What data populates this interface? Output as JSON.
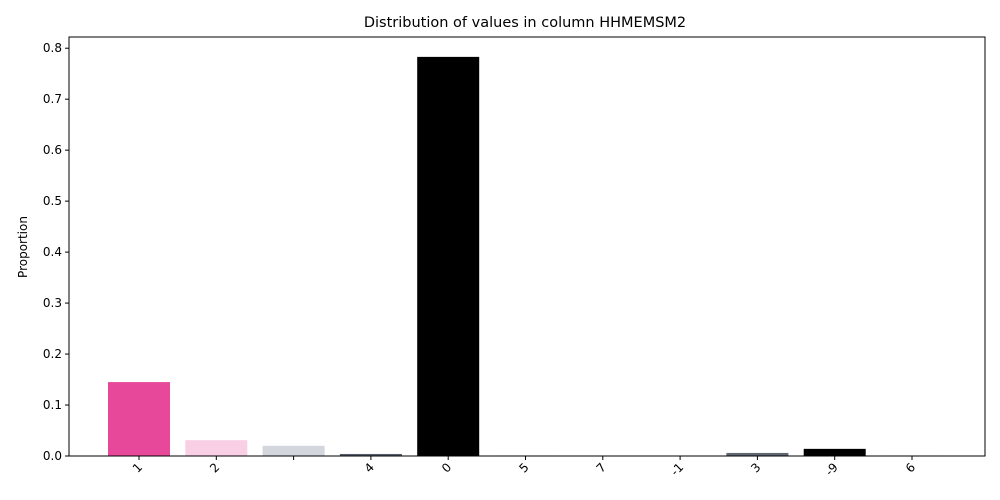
{
  "chart_data": {
    "type": "bar",
    "title": "Distribution of values in column HHMEMSM2",
    "xlabel": "",
    "ylabel": "Proportion",
    "categories": [
      "1",
      "2",
      "",
      "4",
      "0",
      "5",
      "7",
      "-1",
      "3",
      "-9",
      "6"
    ],
    "values": [
      0.145,
      0.031,
      0.02,
      0.004,
      0.783,
      0.001,
      0.0005,
      0.0005,
      0.006,
      0.014,
      0.001
    ],
    "colors": [
      "#e8489a",
      "#f9cfe6",
      "#d3d6dc",
      "#555d6b",
      "#000000",
      "#a8408e",
      "#c06aa5",
      "#2a2e37",
      "#5f6672",
      "#000000",
      "#b04a95"
    ],
    "yticks": [
      "0.0",
      "0.1",
      "0.2",
      "0.3",
      "0.4",
      "0.5",
      "0.6",
      "0.7",
      "0.8"
    ],
    "ylim": [
      0,
      0.822
    ],
    "grid": false,
    "legend": "none"
  }
}
